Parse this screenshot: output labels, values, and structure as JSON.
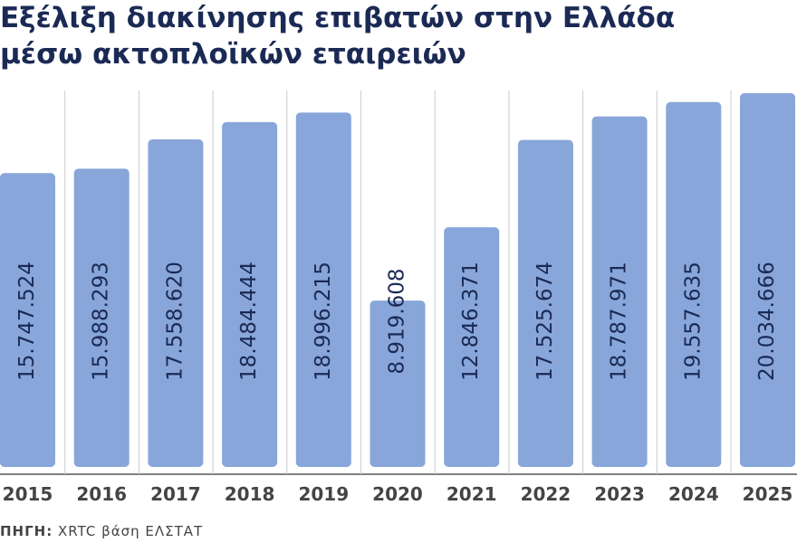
{
  "chart_data": {
    "type": "bar",
    "title": [
      "Εξέλιξη διακίνησης επιβατών στην Ελλάδα",
      "μέσω ακτοπλοϊκών εταιρειών"
    ],
    "categories": [
      "2015",
      "2016",
      "2017",
      "2018",
      "2019",
      "2020",
      "2021",
      "2022",
      "2023",
      "2024",
      "2025"
    ],
    "values": [
      15747524,
      15988293,
      17558620,
      18484444,
      18996215,
      8919608,
      12846371,
      17525674,
      18787971,
      19557635,
      20034666
    ],
    "value_labels": [
      "15.747.524",
      "15.988.293",
      "17.558.620",
      "18.484.444",
      "18.996.215",
      "8.919.608",
      "12.846.371",
      "17.525.674",
      "18.787.971",
      "19.557.635",
      "20.034.666"
    ],
    "color": "#88a6d9",
    "ylim": [
      0,
      21000000
    ],
    "source_label": "ΠΗΓΗ:",
    "source": "XRTC βάση ΕΛΣΤΑΤ"
  }
}
